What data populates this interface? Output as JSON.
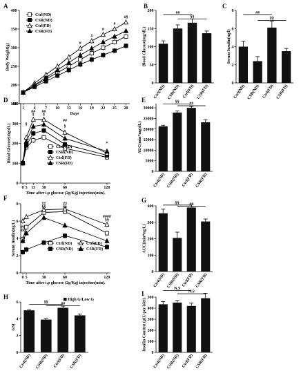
{
  "chart_data": [
    {
      "id": "A",
      "type": "line",
      "panel_label": "A",
      "xlabel": "Days",
      "ylabel": "Body Weight(g)",
      "x": [
        1,
        4,
        7,
        10,
        13,
        16,
        19,
        22,
        25,
        28
      ],
      "xlim": [
        0,
        29
      ],
      "ylim": [
        150,
        400
      ],
      "yticks": [
        150,
        200,
        250,
        300,
        350,
        400
      ],
      "series": [
        {
          "name": "Ctrl(ND)",
          "marker": "open-square",
          "values": [
            180,
            198,
            216,
            233,
            250,
            268,
            285,
            300,
            315,
            330
          ]
        },
        {
          "name": "CSR(ND)",
          "marker": "filled-square",
          "values": [
            180,
            195,
            210,
            225,
            240,
            255,
            268,
            280,
            292,
            305
          ]
        },
        {
          "name": "Ctrl(FD)",
          "marker": "open-triangle",
          "values": [
            180,
            205,
            228,
            250,
            275,
            298,
            318,
            335,
            350,
            368
          ]
        },
        {
          "name": "CSR(FD)",
          "marker": "filled-triangle",
          "values": [
            180,
            200,
            220,
            240,
            260,
            280,
            298,
            315,
            330,
            345
          ]
        }
      ],
      "annotations": [
        {
          "x": 16,
          "text": "#"
        },
        {
          "x": 19,
          "text": "#"
        },
        {
          "x": 22,
          "text": "#"
        },
        {
          "x": 25,
          "text": "#"
        },
        {
          "x": 28,
          "text": "#§"
        }
      ]
    },
    {
      "id": "B",
      "type": "bar",
      "panel_label": "B",
      "ylabel": "Blood Glucose(mg/dL)",
      "categories": [
        "Ctrl(ND)",
        "CSR(ND)",
        "Ctrl(FD)",
        "CSR(FD)"
      ],
      "values": [
        108,
        150,
        166,
        137
      ],
      "errors": [
        8,
        10,
        10,
        6
      ],
      "ylim": [
        0,
        200
      ],
      "yticks": [
        0,
        50,
        100,
        150,
        200
      ],
      "brackets": [
        {
          "from": 0,
          "to": 2,
          "level": 188,
          "text": "##"
        },
        {
          "from": 1,
          "to": 3,
          "level": 176,
          "text": "§§"
        }
      ]
    },
    {
      "id": "C",
      "type": "bar",
      "panel_label": "C",
      "ylabel": "Serum Insulin(ng/l)",
      "categories": [
        "Ctrl(ND)",
        "CSR(ND)",
        "Ctrl(FD)",
        "CSR(FD)"
      ],
      "values": [
        4.0,
        2.4,
        6.1,
        3.5
      ],
      "errors": [
        0.6,
        0.5,
        0.7,
        0.3
      ],
      "ylim": [
        0,
        8
      ],
      "yticks": [
        0,
        2,
        4,
        6,
        8
      ],
      "brackets": [
        {
          "from": 0,
          "to": 2,
          "level": 7.5,
          "text": "##"
        },
        {
          "from": 1,
          "to": 3,
          "level": 6.9,
          "text": "§§"
        }
      ]
    },
    {
      "id": "D",
      "type": "line",
      "panel_label": "D",
      "xlabel": "Time after i.p glucose (2g/Kg) injection(min).",
      "ylabel": "Blood Glucose(mg/dL)",
      "x": [
        0,
        5,
        15,
        30,
        60,
        120
      ],
      "xticks": [
        0,
        5,
        15,
        30,
        60,
        120
      ],
      "xlim": [
        -3,
        125
      ],
      "ylim": [
        0,
        400
      ],
      "yticks": [
        0,
        100,
        200,
        300,
        400
      ],
      "series": [
        {
          "name": "Ctrl(ND)",
          "marker": "open-square",
          "values": [
            100,
            180,
            215,
            230,
            175,
            130
          ]
        },
        {
          "name": "CSR(ND)",
          "marker": "filled-square",
          "values": [
            100,
            190,
            250,
            265,
            195,
            140
          ]
        },
        {
          "name": "Ctrl(FD)",
          "marker": "open-triangle",
          "values": [
            105,
            230,
            320,
            320,
            255,
            150
          ]
        },
        {
          "name": "CSR(FD)",
          "marker": "filled-triangle",
          "values": [
            105,
            210,
            285,
            295,
            225,
            160
          ]
        }
      ],
      "annotations": [
        {
          "x": 5,
          "y": 290,
          "text": "§"
        },
        {
          "x": 15,
          "y": 355,
          "text": "##"
        },
        {
          "x": 15,
          "y": 340,
          "text": "§"
        },
        {
          "x": 30,
          "y": 355,
          "text": "##"
        },
        {
          "x": 30,
          "y": 340,
          "text": "§"
        },
        {
          "x": 60,
          "y": 310,
          "text": "##"
        },
        {
          "x": 60,
          "y": 280,
          "text": "§"
        },
        {
          "x": 120,
          "y": 195,
          "text": "*"
        }
      ],
      "legend_position": "bottom-center"
    },
    {
      "id": "E",
      "type": "bar",
      "panel_label": "E",
      "ylabel": "AUC(min*mg/dL)",
      "categories": [
        "Ctrl(ND)",
        "CSR(ND)",
        "Ctrl(FD)",
        "CSR(FD)"
      ],
      "values": [
        21300,
        27800,
        30000,
        23200
      ],
      "errors": [
        500,
        700,
        700,
        1200
      ],
      "ylim": [
        0,
        32000
      ],
      "yticks": [
        0,
        5000,
        10000,
        15000,
        20000,
        25000,
        30000
      ],
      "brackets": [
        {
          "from": 0,
          "to": 2,
          "level": 31800,
          "text": "§§"
        },
        {
          "from": 1,
          "to": 3,
          "level": 31000,
          "text": "##"
        }
      ]
    },
    {
      "id": "F",
      "type": "line",
      "panel_label": "F",
      "xlabel": "Time after i.p glucose (2g/Kg) injection(min).",
      "ylabel": "Serum Insulin(ng/L)",
      "x": [
        0,
        5,
        30,
        60,
        120
      ],
      "xticks": [
        0,
        5,
        30,
        60,
        120
      ],
      "xlim": [
        -3,
        125
      ],
      "ylim": [
        0,
        8
      ],
      "yticks": [
        0,
        2,
        4,
        6,
        8
      ],
      "series": [
        {
          "name": "Ctrl(ND)",
          "marker": "open-square",
          "values": [
            3.9,
            5.3,
            7.0,
            7.1,
            4.6
          ]
        },
        {
          "name": "CSR(ND)",
          "marker": "filled-square",
          "values": [
            2.4,
            2.7,
            3.5,
            4.3,
            3.0
          ]
        },
        {
          "name": "Ctrl(FD)",
          "marker": "open-triangle",
          "values": [
            6.0,
            6.5,
            7.3,
            7.4,
            5.6
          ]
        },
        {
          "name": "CSR(FD)",
          "marker": "filled-triangle",
          "values": [
            3.7,
            4.6,
            6.4,
            5.5,
            3.7
          ]
        }
      ],
      "annotations": [
        {
          "x": 0,
          "y": 5.2,
          "text": "##"
        },
        {
          "x": 0,
          "y": 4.8,
          "text": "§§"
        },
        {
          "x": 30,
          "y": 7.9,
          "text": "##"
        },
        {
          "x": 30,
          "y": 7.5,
          "text": "§§"
        },
        {
          "x": 60,
          "y": 7.9,
          "text": "##"
        },
        {
          "x": 60,
          "y": 7.5,
          "text": "§§"
        },
        {
          "x": 120,
          "y": 6.4,
          "text": "####"
        },
        {
          "x": 120,
          "y": 6.0,
          "text": "§§"
        }
      ],
      "legend_position": "bottom-center"
    },
    {
      "id": "G",
      "type": "bar",
      "panel_label": "G",
      "ylabel": "AUC(min*ng/L)",
      "categories": [
        "Ctrl(ND)",
        "CSR(ND)",
        "Ctrl(FD)",
        "CSR(FD)"
      ],
      "values": [
        355,
        205,
        390,
        305
      ],
      "errors": [
        25,
        35,
        15,
        15
      ],
      "ylim": [
        0,
        400
      ],
      "yticks": [
        0,
        100,
        200,
        300,
        400
      ],
      "brackets": [
        {
          "from": 0,
          "to": 2,
          "level": 405,
          "text": "§§"
        },
        {
          "from": 1,
          "to": 3,
          "level": 398,
          "text": "##"
        }
      ]
    },
    {
      "id": "H",
      "type": "bar",
      "panel_label": "H",
      "ylabel": "GSI",
      "categories": [
        "Ctrl(ND)",
        "CSR(ND)",
        "Ctrl(FD)",
        "CSR(FD)"
      ],
      "values": [
        5.0,
        3.9,
        5.3,
        4.4
      ],
      "errors": [
        0.05,
        0.15,
        0.2,
        0.15
      ],
      "ylim": [
        0,
        6
      ],
      "yticks": [
        0,
        2,
        4,
        6
      ],
      "legend": "High G/Low G",
      "legend_position": "top-right",
      "brackets": [
        {
          "from": 0,
          "to": 2,
          "level": 5.7,
          "text": "§§"
        },
        {
          "from": 1,
          "to": 3,
          "level": 5.55,
          "text": "##"
        }
      ]
    },
    {
      "id": "I",
      "type": "bar",
      "panel_label": "I",
      "ylabel": "Insulin Content (μIU per islet)",
      "categories": [
        "Ctrl(ND)",
        "CSR(ND)",
        "Ctrl(FD)",
        "CSR(FD)"
      ],
      "values": [
        435,
        450,
        420,
        490
      ],
      "errors": [
        25,
        20,
        25,
        45
      ],
      "ylim": [
        0,
        500
      ],
      "yticks": [
        0,
        100,
        200,
        300,
        400,
        500
      ],
      "brackets": [
        {
          "from": 0,
          "to": 2,
          "level": 560,
          "text": "N.S"
        },
        {
          "from": 1,
          "to": 3,
          "level": 530,
          "text": "N.S"
        }
      ]
    }
  ]
}
